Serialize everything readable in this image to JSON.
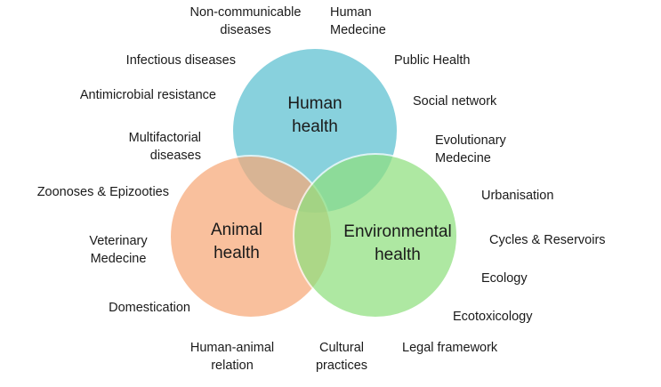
{
  "colors": {
    "human": "#6ec7d6",
    "animal": "#f7a978",
    "environmental": "#8fe07f",
    "outline": "#ffffff"
  },
  "circles": {
    "human": {
      "line1": "Human",
      "line2": "health"
    },
    "animal": {
      "line1": "Animal",
      "line2": "health"
    },
    "environmental": {
      "line1": "Environmental",
      "line2": "health"
    }
  },
  "labels": {
    "non_communicable": {
      "line1": "Non-communicable",
      "line2": "diseases"
    },
    "human_medecine": {
      "line1": "Human",
      "line2": "Medecine"
    },
    "infectious": "Infectious diseases",
    "public_health": "Public Health",
    "antimicrobial": "Antimicrobial resistance",
    "social_network": "Social network",
    "multifactorial": {
      "line1": "Multifactorial",
      "line2": "diseases"
    },
    "evolutionary": {
      "line1": "Evolutionary",
      "line2": "Medecine"
    },
    "zoonoses": "Zoonoses & Epizooties",
    "urbanisation": "Urbanisation",
    "veterinary": {
      "line1": "Veterinary",
      "line2": "Medecine"
    },
    "cycles": "Cycles & Reservoirs",
    "ecology": "Ecology",
    "domestication": "Domestication",
    "ecotoxicology": "Ecotoxicology",
    "human_animal": {
      "line1": "Human-animal",
      "line2": "relation"
    },
    "cultural": {
      "line1": "Cultural",
      "line2": "practices"
    },
    "legal": "Legal framework"
  }
}
